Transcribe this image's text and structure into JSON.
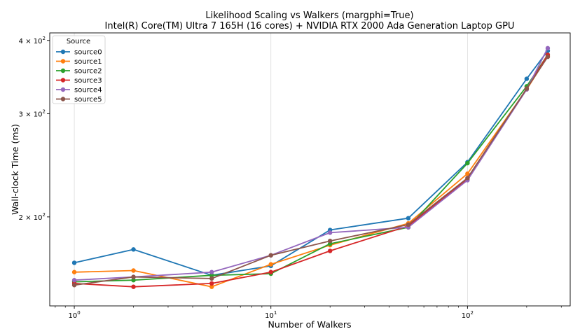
{
  "chart_data": {
    "type": "line",
    "title": "Likelihood Scaling vs Walkers (margphi=True)",
    "subtitle": "Intel(R) Core(TM) Ultra 7 165H (16 cores) + NVIDIA RTX 2000 Ada Generation Laptop GPU",
    "xlabel": "Number of Walkers",
    "ylabel": "Wall-clock Time (ms)",
    "xscale": "log",
    "yscale": "log",
    "xlim": [
      0.75,
      333
    ],
    "ylim": [
      141,
      412
    ],
    "grid": "x-major",
    "x_ticks": [
      {
        "value": 1,
        "base": "10",
        "exp": "0"
      },
      {
        "value": 10,
        "base": "10",
        "exp": "1"
      },
      {
        "value": 100,
        "base": "10",
        "exp": "2"
      }
    ],
    "y_ticks": [
      {
        "value": 200,
        "mant": "2",
        "base": "10",
        "exp": "2"
      },
      {
        "value": 300,
        "mant": "3",
        "base": "10",
        "exp": "2"
      },
      {
        "value": 400,
        "mant": "4",
        "base": "10",
        "exp": "2"
      }
    ],
    "legend": {
      "title": "Source",
      "position": "upper left"
    },
    "x": [
      1,
      2,
      5,
      10,
      20,
      50,
      100,
      200,
      256
    ],
    "series": [
      {
        "name": "source0",
        "color": "#1f77b4",
        "values": [
          167,
          176,
          159,
          165,
          190,
          199,
          248,
          344,
          384
        ]
      },
      {
        "name": "source1",
        "color": "#ff7f0e",
        "values": [
          161,
          162,
          152,
          166,
          179,
          195,
          237,
          330,
          376
        ]
      },
      {
        "name": "source2",
        "color": "#2ca02c",
        "values": [
          155,
          156,
          159,
          160,
          180,
          192,
          247,
          334,
          378
        ]
      },
      {
        "name": "source3",
        "color": "#d62728",
        "values": [
          154,
          152,
          154,
          161,
          175,
          193,
          232,
          331,
          378
        ]
      },
      {
        "name": "source4",
        "color": "#9467bd",
        "values": [
          156,
          158,
          161,
          172,
          188,
          192,
          231,
          330,
          388
        ]
      },
      {
        "name": "source5",
        "color": "#8c564b",
        "values": [
          153,
          158,
          157,
          172,
          182,
          194,
          233,
          331,
          375
        ]
      }
    ]
  }
}
